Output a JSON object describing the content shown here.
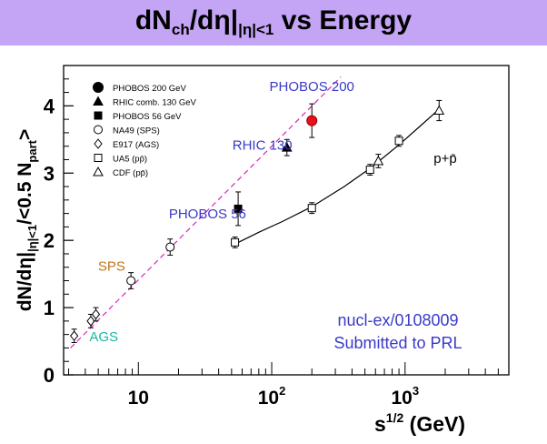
{
  "title": {
    "main_start": "dN",
    "sub_ch": "ch",
    "slash": "/dη|",
    "sub_eta": "|η|<1",
    "main_end": " vs Energy"
  },
  "chart_data": {
    "type": "scatter",
    "x_scale": "log",
    "xlim": [
      2.75,
      6000
    ],
    "ylim": [
      0,
      4.6
    ],
    "xlabel": "s",
    "xlabel_sup": "1/2",
    "xlabel_unit": " (GeV)",
    "ylabel": "dN/dη|",
    "ylabel_sub": "|η|<1",
    "ylabel_tail": "/<0.5 N",
    "ylabel_sub2": "part",
    "ylabel_end": ">",
    "y_ticks": [
      0,
      1,
      2,
      3,
      4
    ],
    "x_ticks": [
      {
        "value": 10,
        "base": "10",
        "exp": ""
      },
      {
        "value": 100,
        "base": "10",
        "exp": "2"
      },
      {
        "value": 1000,
        "base": "10",
        "exp": "3"
      }
    ],
    "legend": [
      {
        "marker": "filled-circle",
        "label": "PHOBOS 200 GeV"
      },
      {
        "marker": "filled-triangle",
        "label": "RHIC comb. 130 GeV"
      },
      {
        "marker": "filled-square",
        "label": "PHOBOS 56 GeV"
      },
      {
        "marker": "open-circle",
        "label": "NA49 (SPS)"
      },
      {
        "marker": "open-diamond",
        "label": "E917 (AGS)"
      },
      {
        "marker": "open-square",
        "label": "UA5 (pp̄)"
      },
      {
        "marker": "open-triangle",
        "label": "CDF (pp̄)"
      }
    ],
    "series": [
      {
        "name": "PHOBOS 200 GeV",
        "marker": "filled-circle",
        "color": "#e8101c",
        "points": [
          {
            "x": 200,
            "y": 3.78,
            "err": 0.25
          }
        ]
      },
      {
        "name": "RHIC comb. 130 GeV",
        "marker": "filled-triangle",
        "color": "#000000",
        "points": [
          {
            "x": 130,
            "y": 3.38,
            "err": 0.12
          }
        ]
      },
      {
        "name": "PHOBOS 56 GeV",
        "marker": "filled-square",
        "color": "#000000",
        "points": [
          {
            "x": 56,
            "y": 2.47,
            "err": 0.25
          }
        ]
      },
      {
        "name": "NA49 (SPS)",
        "marker": "open-circle",
        "color": "#000000",
        "points": [
          {
            "x": 8.8,
            "y": 1.4,
            "err": 0.12
          },
          {
            "x": 17.3,
            "y": 1.9,
            "err": 0.12
          }
        ]
      },
      {
        "name": "E917 (AGS)",
        "marker": "open-diamond",
        "color": "#000000",
        "points": [
          {
            "x": 3.3,
            "y": 0.58,
            "err": 0.1
          },
          {
            "x": 4.4,
            "y": 0.8,
            "err": 0.1
          },
          {
            "x": 4.8,
            "y": 0.9,
            "err": 0.1
          }
        ]
      },
      {
        "name": "UA5 (pp̄)",
        "marker": "open-square",
        "color": "#000000",
        "points": [
          {
            "x": 53,
            "y": 1.97,
            "err": 0.08
          },
          {
            "x": 200,
            "y": 2.48,
            "err": 0.08
          },
          {
            "x": 546,
            "y": 3.05,
            "err": 0.08
          },
          {
            "x": 900,
            "y": 3.48,
            "err": 0.08
          }
        ]
      },
      {
        "name": "CDF (pp̄)",
        "marker": "open-triangle",
        "color": "#000000",
        "points": [
          {
            "x": 630,
            "y": 3.18,
            "err": 0.1
          },
          {
            "x": 1800,
            "y": 3.93,
            "err": 0.15
          }
        ]
      }
    ],
    "fit_lines": [
      {
        "style": "dashed",
        "color": "#e020c0",
        "x": [
          3.1,
          330
        ],
        "y": [
          0.4,
          4.43
        ]
      },
      {
        "style": "solid",
        "color": "#000000",
        "x": [
          50,
          80,
          120,
          200,
          350,
          546,
          900,
          1300,
          1800
        ],
        "y": [
          1.92,
          2.12,
          2.28,
          2.5,
          2.8,
          3.07,
          3.42,
          3.7,
          3.95
        ]
      }
    ],
    "annotations": [
      {
        "text": "PHOBOS 200",
        "x": 200,
        "y": 4.22,
        "color": "#3a3ac8"
      },
      {
        "text": "RHIC 130",
        "x": 85,
        "y": 3.35,
        "color": "#3a3ac8"
      },
      {
        "text": "PHOBOS 56",
        "x": 33,
        "y": 2.33,
        "color": "#3a3ac8"
      },
      {
        "text": "SPS",
        "x": 6.3,
        "y": 1.55,
        "color": "#c07818"
      },
      {
        "text": "AGS",
        "x": 5.5,
        "y": 0.5,
        "color": "#18b8a0"
      },
      {
        "text": "p+p̄",
        "x": 2000,
        "y": 3.15,
        "color": "#000000"
      }
    ],
    "note_lines": [
      "nucl-ex/0108009",
      "Submitted to PRL"
    ],
    "note_color": "#3a3ac8"
  }
}
